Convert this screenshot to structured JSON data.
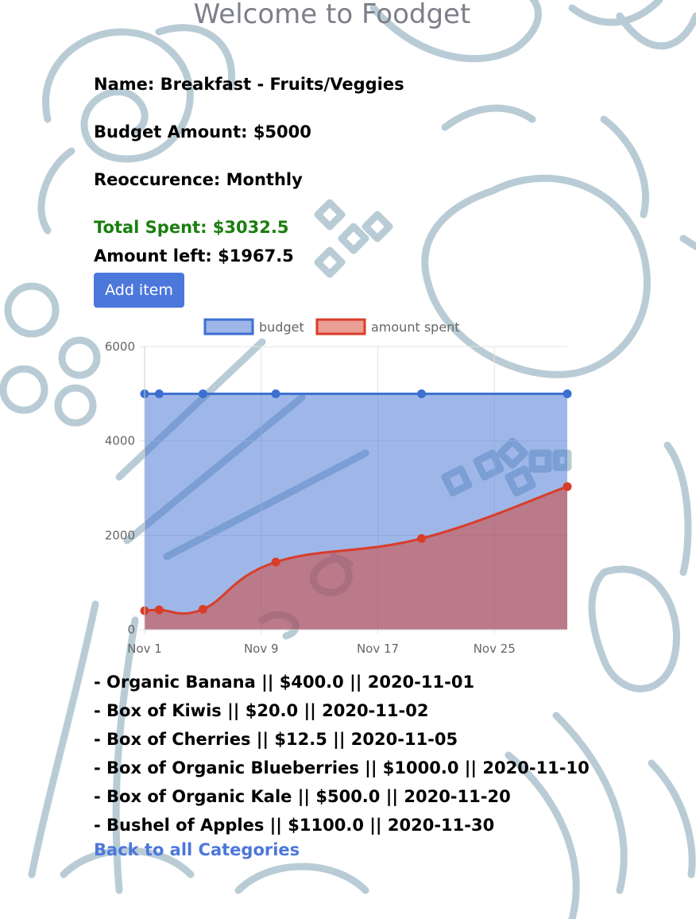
{
  "page": {
    "title": "Welcome to Foodget"
  },
  "budget": {
    "name_line": "Name: Breakfast - Fruits/Veggies",
    "amount_line": "Budget Amount: $5000",
    "recurrence_line": "Reoccurence: Monthly",
    "total_spent_line": "Total Spent: $3032.5",
    "amount_left_line": "Amount left: $1967.5"
  },
  "actions": {
    "add_item_label": "Add item",
    "back_label": "Back to all Categories"
  },
  "items": [
    "- Organic Banana || $400.0 || 2020-11-01",
    "- Box of Kiwis || $20.0 || 2020-11-02",
    "- Box of Cherries || $12.5 || 2020-11-05",
    "- Box of Organic Blueberries || $1000.0 || 2020-11-10",
    "- Box of Organic Kale || $500.0 || 2020-11-20",
    "- Bushel of Apples || $1100.0 || 2020-11-30"
  ],
  "colors": {
    "accent": "#4c77db",
    "spent_green": "#1a7f0f",
    "budget_line": "#3d6fd1",
    "budget_fill": "rgba(61,111,209,0.5)",
    "spent_line": "#d83d2a",
    "spent_fill": "rgba(216,61,42,0.5)",
    "background_doodle": "#b9ccd6"
  },
  "chart_data": {
    "type": "area",
    "legend_position": "top",
    "grid": true,
    "x_type": "date",
    "xlim": [
      "2020-11-01",
      "2020-11-30"
    ],
    "ylim": [
      0,
      6000
    ],
    "y_ticks": [
      0,
      2000,
      4000,
      6000
    ],
    "y_tick_labels": [
      "0",
      "2000",
      "4000",
      "6000"
    ],
    "x_ticks": [
      "2020-11-01",
      "2020-11-09",
      "2020-11-17",
      "2020-11-25"
    ],
    "x_tick_labels": [
      "Nov 1",
      "Nov 9",
      "Nov 17",
      "Nov 25"
    ],
    "series": [
      {
        "name": "budget",
        "x": [
          "2020-11-01",
          "2020-11-02",
          "2020-11-05",
          "2020-11-10",
          "2020-11-20",
          "2020-11-30"
        ],
        "values": [
          5000,
          5000,
          5000,
          5000,
          5000,
          5000
        ]
      },
      {
        "name": "amount spent",
        "x": [
          "2020-11-01",
          "2020-11-02",
          "2020-11-05",
          "2020-11-10",
          "2020-11-20",
          "2020-11-30"
        ],
        "values": [
          400,
          420,
          432.5,
          1432.5,
          1932.5,
          3032.5
        ]
      }
    ]
  }
}
